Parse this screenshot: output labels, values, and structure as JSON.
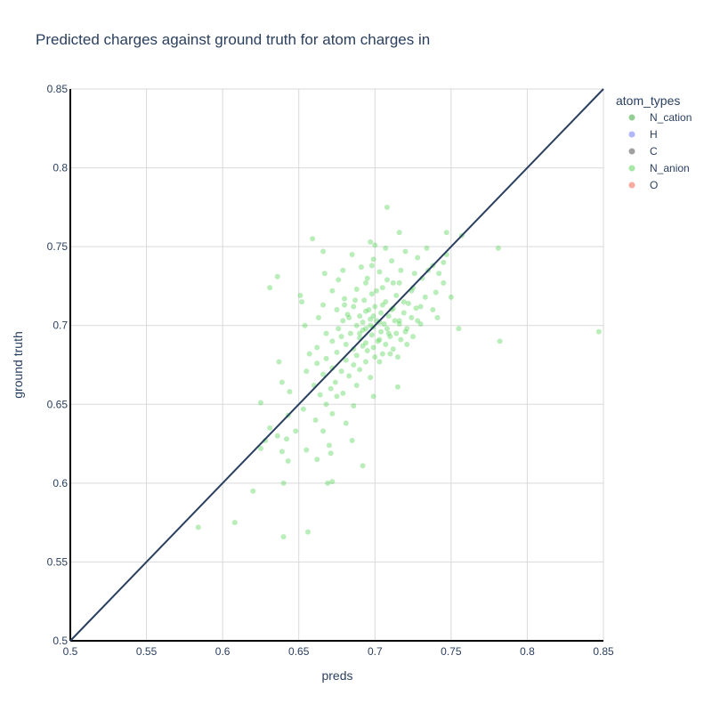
{
  "chart_data": {
    "type": "scatter",
    "title": "Predicted charges against ground truth for atom charges in",
    "xlabel": "preds",
    "ylabel": "ground truth",
    "xlim": [
      0.5,
      0.85
    ],
    "ylim": [
      0.5,
      0.85
    ],
    "x_ticks": [
      "0.5",
      "0.55",
      "0.6",
      "0.65",
      "0.7",
      "0.75",
      "0.8",
      "0.85"
    ],
    "y_ticks": [
      "0.5",
      "0.55",
      "0.6",
      "0.65",
      "0.7",
      "0.75",
      "0.8",
      "0.85"
    ],
    "grid": true,
    "legend_title": "atom_types",
    "legend_position": "top-right",
    "reference_line": {
      "x": [
        0.5,
        0.85
      ],
      "y": [
        0.5,
        0.85
      ],
      "color": "#2a3f5f"
    },
    "series": [
      {
        "name": "N_cation",
        "color": "#2ca02c",
        "points": []
      },
      {
        "name": "H",
        "color": "#636efa",
        "points": []
      },
      {
        "name": "C",
        "color": "#444444",
        "points": []
      },
      {
        "name": "N_anion",
        "color": "#4fd14f",
        "points": [
          [
            0.708,
            0.775
          ],
          [
            0.747,
            0.759
          ],
          [
            0.716,
            0.759
          ],
          [
            0.659,
            0.755
          ],
          [
            0.697,
            0.753
          ],
          [
            0.7,
            0.751
          ],
          [
            0.757,
            0.757
          ],
          [
            0.781,
            0.749
          ],
          [
            0.685,
            0.745
          ],
          [
            0.707,
            0.749
          ],
          [
            0.734,
            0.749
          ],
          [
            0.72,
            0.747
          ],
          [
            0.728,
            0.743
          ],
          [
            0.747,
            0.745
          ],
          [
            0.666,
            0.747
          ],
          [
            0.699,
            0.742
          ],
          [
            0.711,
            0.741
          ],
          [
            0.738,
            0.738
          ],
          [
            0.717,
            0.735
          ],
          [
            0.703,
            0.734
          ],
          [
            0.679,
            0.735
          ],
          [
            0.691,
            0.737
          ],
          [
            0.726,
            0.733
          ],
          [
            0.742,
            0.733
          ],
          [
            0.636,
            0.731
          ],
          [
            0.667,
            0.733
          ],
          [
            0.708,
            0.729
          ],
          [
            0.694,
            0.727
          ],
          [
            0.716,
            0.727
          ],
          [
            0.731,
            0.73
          ],
          [
            0.745,
            0.727
          ],
          [
            0.676,
            0.729
          ],
          [
            0.631,
            0.724
          ],
          [
            0.705,
            0.724
          ],
          [
            0.688,
            0.723
          ],
          [
            0.724,
            0.722
          ],
          [
            0.74,
            0.721
          ],
          [
            0.672,
            0.722
          ],
          [
            0.651,
            0.719
          ],
          [
            0.698,
            0.72
          ],
          [
            0.714,
            0.719
          ],
          [
            0.733,
            0.718
          ],
          [
            0.75,
            0.718
          ],
          [
            0.68,
            0.717
          ],
          [
            0.693,
            0.716
          ],
          [
            0.707,
            0.715
          ],
          [
            0.722,
            0.714
          ],
          [
            0.652,
            0.715
          ],
          [
            0.666,
            0.713
          ],
          [
            0.686,
            0.712
          ],
          [
            0.7,
            0.712
          ],
          [
            0.712,
            0.711
          ],
          [
            0.727,
            0.711
          ],
          [
            0.738,
            0.71
          ],
          [
            0.675,
            0.71
          ],
          [
            0.694,
            0.709
          ],
          [
            0.704,
            0.708
          ],
          [
            0.719,
            0.708
          ],
          [
            0.682,
            0.707
          ],
          [
            0.69,
            0.706
          ],
          [
            0.709,
            0.706
          ],
          [
            0.724,
            0.705
          ],
          [
            0.741,
            0.705
          ],
          [
            0.663,
            0.705
          ],
          [
            0.697,
            0.704
          ],
          [
            0.713,
            0.703
          ],
          [
            0.679,
            0.703
          ],
          [
            0.703,
            0.702
          ],
          [
            0.716,
            0.701
          ],
          [
            0.73,
            0.701
          ],
          [
            0.654,
            0.7
          ],
          [
            0.688,
            0.7
          ],
          [
            0.699,
            0.699
          ],
          [
            0.708,
            0.698
          ],
          [
            0.721,
            0.698
          ],
          [
            0.676,
            0.698
          ],
          [
            0.755,
            0.698
          ],
          [
            0.692,
            0.697
          ],
          [
            0.704,
            0.696
          ],
          [
            0.714,
            0.695
          ],
          [
            0.847,
            0.696
          ],
          [
            0.668,
            0.695
          ],
          [
            0.684,
            0.695
          ],
          [
            0.698,
            0.694
          ],
          [
            0.71,
            0.693
          ],
          [
            0.725,
            0.693
          ],
          [
            0.69,
            0.692
          ],
          [
            0.703,
            0.691
          ],
          [
            0.717,
            0.691
          ],
          [
            0.672,
            0.69
          ],
          [
            0.782,
            0.69
          ],
          [
            0.694,
            0.689
          ],
          [
            0.707,
            0.688
          ],
          [
            0.681,
            0.688
          ],
          [
            0.721,
            0.688
          ],
          [
            0.699,
            0.686
          ],
          [
            0.662,
            0.686
          ],
          [
            0.686,
            0.685
          ],
          [
            0.712,
            0.685
          ],
          [
            0.695,
            0.684
          ],
          [
            0.675,
            0.683
          ],
          [
            0.705,
            0.682
          ],
          [
            0.657,
            0.682
          ],
          [
            0.688,
            0.681
          ],
          [
            0.7,
            0.68
          ],
          [
            0.715,
            0.68
          ],
          [
            0.668,
            0.679
          ],
          [
            0.681,
            0.678
          ],
          [
            0.694,
            0.677
          ],
          [
            0.703,
            0.677
          ],
          [
            0.662,
            0.676
          ],
          [
            0.686,
            0.675
          ],
          [
            0.637,
            0.677
          ],
          [
            0.672,
            0.673
          ],
          [
            0.69,
            0.672
          ],
          [
            0.678,
            0.671
          ],
          [
            0.655,
            0.671
          ],
          [
            0.666,
            0.669
          ],
          [
            0.683,
            0.668
          ],
          [
            0.697,
            0.667
          ],
          [
            0.639,
            0.664
          ],
          [
            0.674,
            0.664
          ],
          [
            0.66,
            0.662
          ],
          [
            0.688,
            0.662
          ],
          [
            0.715,
            0.661
          ],
          [
            0.671,
            0.66
          ],
          [
            0.644,
            0.658
          ],
          [
            0.679,
            0.657
          ],
          [
            0.664,
            0.656
          ],
          [
            0.699,
            0.655
          ],
          [
            0.675,
            0.655
          ],
          [
            0.625,
            0.651
          ],
          [
            0.668,
            0.65
          ],
          [
            0.686,
            0.649
          ],
          [
            0.653,
            0.647
          ],
          [
            0.672,
            0.644
          ],
          [
            0.643,
            0.643
          ],
          [
            0.661,
            0.64
          ],
          [
            0.681,
            0.638
          ],
          [
            0.631,
            0.635
          ],
          [
            0.666,
            0.633
          ],
          [
            0.648,
            0.633
          ],
          [
            0.636,
            0.63
          ],
          [
            0.685,
            0.627
          ],
          [
            0.628,
            0.627
          ],
          [
            0.642,
            0.628
          ],
          [
            0.67,
            0.624
          ],
          [
            0.655,
            0.621
          ],
          [
            0.639,
            0.62
          ],
          [
            0.625,
            0.622
          ],
          [
            0.671,
            0.619
          ],
          [
            0.662,
            0.615
          ],
          [
            0.643,
            0.614
          ],
          [
            0.692,
            0.611
          ],
          [
            0.672,
            0.601
          ],
          [
            0.669,
            0.6
          ],
          [
            0.64,
            0.6
          ],
          [
            0.62,
            0.595
          ],
          [
            0.608,
            0.575
          ],
          [
            0.584,
            0.572
          ],
          [
            0.656,
            0.569
          ],
          [
            0.64,
            0.566
          ],
          [
            0.697,
            0.7
          ],
          [
            0.701,
            0.703
          ],
          [
            0.694,
            0.698
          ],
          [
            0.706,
            0.701
          ],
          [
            0.699,
            0.706
          ],
          [
            0.692,
            0.702
          ],
          [
            0.709,
            0.695
          ],
          [
            0.702,
            0.69
          ],
          [
            0.696,
            0.71
          ],
          [
            0.711,
            0.71
          ],
          [
            0.69,
            0.695
          ],
          [
            0.705,
            0.713
          ],
          [
            0.716,
            0.703
          ],
          [
            0.683,
            0.705
          ],
          [
            0.719,
            0.715
          ],
          [
            0.701,
            0.722
          ],
          [
            0.687,
            0.716
          ],
          [
            0.725,
            0.724
          ],
          [
            0.712,
            0.727
          ],
          [
            0.695,
            0.73
          ],
          [
            0.73,
            0.712
          ],
          [
            0.678,
            0.693
          ],
          [
            0.692,
            0.687
          ],
          [
            0.71,
            0.682
          ],
          [
            0.72,
            0.696
          ],
          [
            0.735,
            0.735
          ],
          [
            0.745,
            0.74
          ],
          [
            0.698,
            0.738
          ],
          [
            0.728,
            0.703
          ],
          [
            0.68,
            0.713
          ]
        ]
      },
      {
        "name": "O",
        "color": "#ef553b",
        "points": []
      }
    ]
  }
}
